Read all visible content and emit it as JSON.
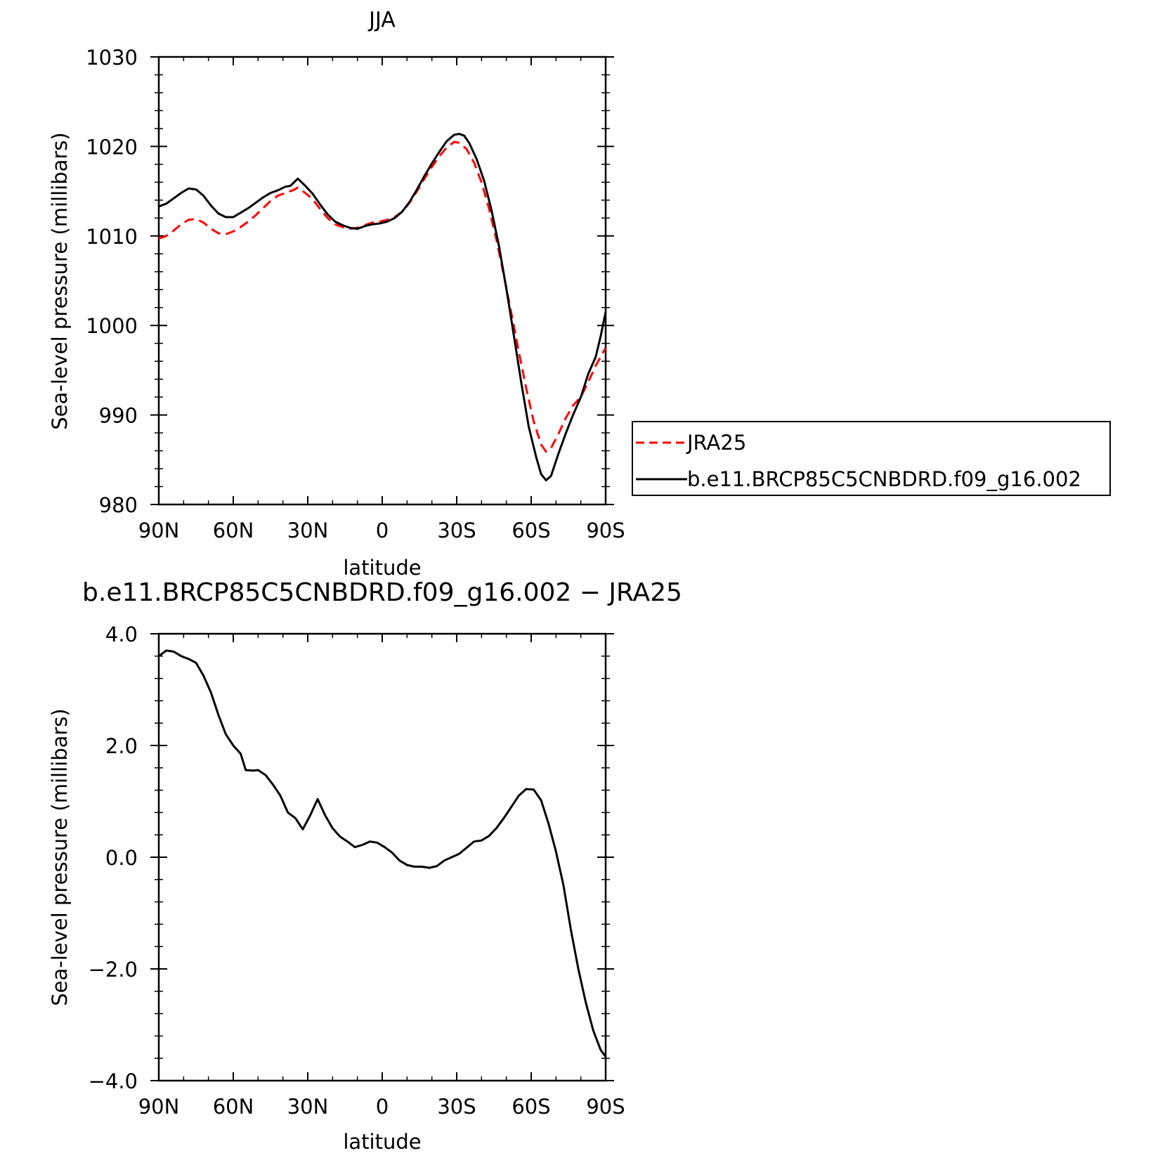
{
  "chart_data": [
    {
      "type": "line",
      "title": "JJA",
      "xlabel": "latitude",
      "ylabel": "Sea-level pressure (millibars)",
      "xlim": [
        -90,
        90
      ],
      "ylim": [
        980,
        1030
      ],
      "x_ticks": [
        {
          "value": -90,
          "label": "90N"
        },
        {
          "value": -60,
          "label": "60N"
        },
        {
          "value": -30,
          "label": "30N"
        },
        {
          "value": 0,
          "label": "0"
        },
        {
          "value": 30,
          "label": "30S"
        },
        {
          "value": 60,
          "label": "60S"
        },
        {
          "value": 90,
          "label": "90S"
        }
      ],
      "y_ticks": [
        {
          "value": 980,
          "label": "980"
        },
        {
          "value": 990,
          "label": "990"
        },
        {
          "value": 1000,
          "label": "1000"
        },
        {
          "value": 1010,
          "label": "1010"
        },
        {
          "value": 1020,
          "label": "1020"
        },
        {
          "value": 1030,
          "label": "1030"
        }
      ],
      "legend": {
        "placement": "right"
      },
      "series": [
        {
          "name": "JRA25",
          "color": "#ff0000",
          "dash": "dashed",
          "points": [
            [
              -90,
              1009.7
            ],
            [
              -87,
              1010.0
            ],
            [
              -84,
              1010.6
            ],
            [
              -81,
              1011.3
            ],
            [
              -78,
              1011.8
            ],
            [
              -75,
              1011.9
            ],
            [
              -72,
              1011.5
            ],
            [
              -69,
              1010.8
            ],
            [
              -66,
              1010.3
            ],
            [
              -63,
              1010.2
            ],
            [
              -60,
              1010.5
            ],
            [
              -57,
              1011.0
            ],
            [
              -54,
              1011.6
            ],
            [
              -51,
              1012.3
            ],
            [
              -48,
              1013.1
            ],
            [
              -45,
              1013.9
            ],
            [
              -42,
              1014.5
            ],
            [
              -39,
              1014.8
            ],
            [
              -36,
              1015.1
            ],
            [
              -34,
              1015.4
            ],
            [
              -31,
              1014.8
            ],
            [
              -28,
              1014.1
            ],
            [
              -25,
              1013.0
            ],
            [
              -22,
              1012.0
            ],
            [
              -19,
              1011.3
            ],
            [
              -16,
              1011.0
            ],
            [
              -13,
              1010.8
            ],
            [
              -10,
              1010.9
            ],
            [
              -7,
              1011.2
            ],
            [
              -4,
              1011.5
            ],
            [
              -1,
              1011.6
            ],
            [
              2,
              1011.8
            ],
            [
              5,
              1012.1
            ],
            [
              8,
              1012.7
            ],
            [
              11,
              1013.7
            ],
            [
              14,
              1015.0
            ],
            [
              17,
              1016.4
            ],
            [
              20,
              1017.7
            ],
            [
              23,
              1018.9
            ],
            [
              26,
              1019.9
            ],
            [
              29,
              1020.5
            ],
            [
              31,
              1020.4
            ],
            [
              34,
              1019.7
            ],
            [
              37,
              1018.2
            ],
            [
              40,
              1016.0
            ],
            [
              43,
              1013.1
            ],
            [
              46,
              1009.6
            ],
            [
              49,
              1005.6
            ],
            [
              52,
              1001.4
            ],
            [
              55,
              997.1
            ],
            [
              58,
              993.0
            ],
            [
              61,
              989.3
            ],
            [
              64,
              986.7
            ],
            [
              66,
              985.9
            ],
            [
              68,
              986.3
            ],
            [
              71,
              987.9
            ],
            [
              74,
              989.7
            ],
            [
              77,
              991.1
            ],
            [
              80,
              992.0
            ],
            [
              83,
              993.7
            ],
            [
              86,
              995.5
            ],
            [
              90,
              997.5
            ]
          ]
        },
        {
          "name": "b.e11.BRCP85C5CNBDRD.f09_g16.002",
          "color": "#000000",
          "dash": "solid",
          "points": [
            [
              -90,
              1013.3
            ],
            [
              -87,
              1013.6
            ],
            [
              -84,
              1014.2
            ],
            [
              -81,
              1014.8
            ],
            [
              -78,
              1015.3
            ],
            [
              -75,
              1015.2
            ],
            [
              -72,
              1014.5
            ],
            [
              -69,
              1013.4
            ],
            [
              -66,
              1012.5
            ],
            [
              -63,
              1012.1
            ],
            [
              -60,
              1012.1
            ],
            [
              -57,
              1012.6
            ],
            [
              -54,
              1013.1
            ],
            [
              -51,
              1013.7
            ],
            [
              -48,
              1014.3
            ],
            [
              -45,
              1014.8
            ],
            [
              -42,
              1015.1
            ],
            [
              -39,
              1015.5
            ],
            [
              -37,
              1015.6
            ],
            [
              -34,
              1016.4
            ],
            [
              -31,
              1015.6
            ],
            [
              -28,
              1014.7
            ],
            [
              -25,
              1013.5
            ],
            [
              -22,
              1012.4
            ],
            [
              -19,
              1011.6
            ],
            [
              -16,
              1011.2
            ],
            [
              -13,
              1010.9
            ],
            [
              -10,
              1010.8
            ],
            [
              -7,
              1011.1
            ],
            [
              -4,
              1011.3
            ],
            [
              -1,
              1011.4
            ],
            [
              2,
              1011.6
            ],
            [
              5,
              1012.0
            ],
            [
              8,
              1012.7
            ],
            [
              11,
              1013.8
            ],
            [
              14,
              1015.2
            ],
            [
              17,
              1016.7
            ],
            [
              20,
              1018.1
            ],
            [
              23,
              1019.4
            ],
            [
              26,
              1020.6
            ],
            [
              29,
              1021.3
            ],
            [
              31,
              1021.4
            ],
            [
              33,
              1021.2
            ],
            [
              35,
              1020.4
            ],
            [
              38,
              1018.6
            ],
            [
              41,
              1016.2
            ],
            [
              44,
              1012.9
            ],
            [
              47,
              1008.9
            ],
            [
              50,
              1004.1
            ],
            [
              53,
              998.9
            ],
            [
              56,
              993.6
            ],
            [
              59,
              988.7
            ],
            [
              62,
              985.3
            ],
            [
              64,
              983.4
            ],
            [
              66,
              982.7
            ],
            [
              68,
              983.2
            ],
            [
              71,
              985.7
            ],
            [
              74,
              988.0
            ],
            [
              77,
              990.1
            ],
            [
              80,
              992.0
            ],
            [
              83,
              994.6
            ],
            [
              86,
              996.5
            ],
            [
              88,
              998.8
            ],
            [
              90,
              1001.5
            ]
          ]
        }
      ]
    },
    {
      "type": "line",
      "title": "b.e11.BRCP85C5CNBDRD.f09_g16.002 − JRA25",
      "xlabel": "latitude",
      "ylabel": "Sea-level pressure (millibars)",
      "xlim": [
        -90,
        90
      ],
      "ylim": [
        -4,
        4
      ],
      "x_ticks": [
        {
          "value": -90,
          "label": "90N"
        },
        {
          "value": -60,
          "label": "60N"
        },
        {
          "value": -30,
          "label": "30N"
        },
        {
          "value": 0,
          "label": "0"
        },
        {
          "value": 30,
          "label": "30S"
        },
        {
          "value": 60,
          "label": "60S"
        },
        {
          "value": 90,
          "label": "90S"
        }
      ],
      "y_ticks": [
        {
          "value": -4,
          "label": "−4.0"
        },
        {
          "value": -2,
          "label": "−2.0"
        },
        {
          "value": 0,
          "label": "0.0"
        },
        {
          "value": 2,
          "label": "2.0"
        },
        {
          "value": 4,
          "label": "4.0"
        }
      ],
      "series": [
        {
          "color": "#000000",
          "dash": "solid",
          "points": [
            [
              -90,
              3.6
            ],
            [
              -87,
              3.7
            ],
            [
              -84,
              3.68
            ],
            [
              -81,
              3.6
            ],
            [
              -78,
              3.55
            ],
            [
              -75,
              3.48
            ],
            [
              -72,
              3.25
            ],
            [
              -69,
              2.95
            ],
            [
              -66,
              2.55
            ],
            [
              -63,
              2.2
            ],
            [
              -60,
              2.0
            ],
            [
              -57,
              1.85
            ],
            [
              -55,
              1.56
            ],
            [
              -52,
              1.55
            ],
            [
              -50,
              1.56
            ],
            [
              -47,
              1.47
            ],
            [
              -44,
              1.3
            ],
            [
              -41,
              1.1
            ],
            [
              -38,
              0.8
            ],
            [
              -35,
              0.7
            ],
            [
              -32,
              0.5
            ],
            [
              -29,
              0.75
            ],
            [
              -26,
              1.04
            ],
            [
              -23,
              0.75
            ],
            [
              -20,
              0.52
            ],
            [
              -17,
              0.37
            ],
            [
              -14,
              0.28
            ],
            [
              -11,
              0.18
            ],
            [
              -8,
              0.22
            ],
            [
              -5,
              0.28
            ],
            [
              -2,
              0.26
            ],
            [
              1,
              0.18
            ],
            [
              4,
              0.08
            ],
            [
              7,
              -0.06
            ],
            [
              10,
              -0.14
            ],
            [
              13,
              -0.17
            ],
            [
              16,
              -0.17
            ],
            [
              19,
              -0.19
            ],
            [
              22,
              -0.16
            ],
            [
              25,
              -0.06
            ],
            [
              28,
              0.0
            ],
            [
              31,
              0.06
            ],
            [
              34,
              0.17
            ],
            [
              37,
              0.28
            ],
            [
              40,
              0.3
            ],
            [
              43,
              0.38
            ],
            [
              46,
              0.52
            ],
            [
              49,
              0.7
            ],
            [
              52,
              0.9
            ],
            [
              55,
              1.1
            ],
            [
              58,
              1.22
            ],
            [
              61,
              1.21
            ],
            [
              64,
              1.02
            ],
            [
              67,
              0.6
            ],
            [
              70,
              0.1
            ],
            [
              73,
              -0.5
            ],
            [
              76,
              -1.3
            ],
            [
              79,
              -2.0
            ],
            [
              82,
              -2.6
            ],
            [
              85,
              -3.1
            ],
            [
              88,
              -3.45
            ],
            [
              90,
              -3.57
            ]
          ]
        }
      ]
    }
  ]
}
